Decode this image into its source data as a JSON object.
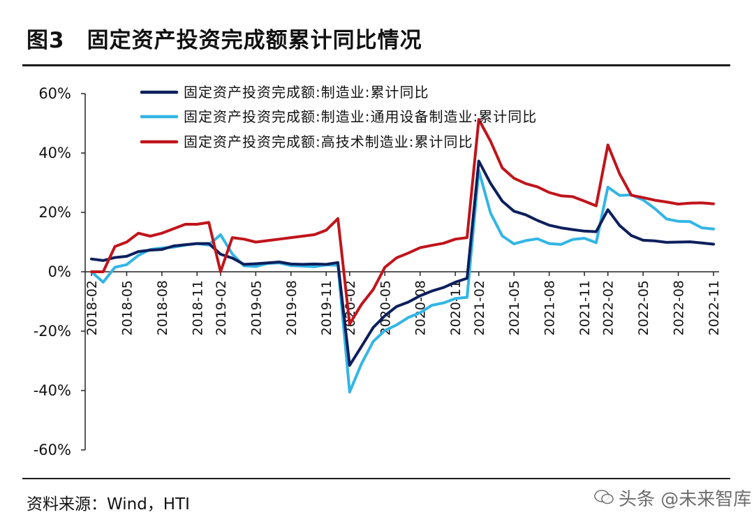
{
  "header": {
    "title": "图3　固定资产投资完成额累计同比情况"
  },
  "footer": {
    "source": "资料来源：Wind，HTI",
    "watermark": "头条 @未来智库"
  },
  "chart_data": {
    "type": "line",
    "title": "",
    "xlabel": "",
    "ylabel": "",
    "ylim": [
      -60,
      60
    ],
    "y_ticks": [
      -60,
      -40,
      -20,
      0,
      20,
      40,
      60
    ],
    "y_tick_labels": [
      "-60%",
      "-40%",
      "-20%",
      "0%",
      "20%",
      "40%",
      "60%"
    ],
    "y_unit": "%",
    "grid": false,
    "legend_position": "top-left",
    "x_tick_labels": [
      "2018-02",
      "2018-05",
      "2018-08",
      "2018-11",
      "2019-02",
      "2019-05",
      "2019-08",
      "2019-11",
      "2020-02",
      "2020-05",
      "2020-08",
      "2020-11",
      "2021-02",
      "2021-05",
      "2021-08",
      "2021-11",
      "2022-02",
      "2022-05",
      "2022-08",
      "2022-11"
    ],
    "x": [
      "2018-02",
      "2018-03",
      "2018-04",
      "2018-05",
      "2018-06",
      "2018-07",
      "2018-08",
      "2018-09",
      "2018-10",
      "2018-11",
      "2018-12",
      "2019-02",
      "2019-03",
      "2019-04",
      "2019-05",
      "2019-06",
      "2019-07",
      "2019-08",
      "2019-09",
      "2019-10",
      "2019-11",
      "2019-12",
      "2020-02",
      "2020-03",
      "2020-04",
      "2020-05",
      "2020-06",
      "2020-07",
      "2020-08",
      "2020-09",
      "2020-10",
      "2020-11",
      "2020-12",
      "2021-02",
      "2021-03",
      "2021-04",
      "2021-05",
      "2021-06",
      "2021-07",
      "2021-08",
      "2021-09",
      "2021-10",
      "2021-11",
      "2021-12",
      "2022-02",
      "2022-03",
      "2022-04",
      "2022-05",
      "2022-06",
      "2022-07",
      "2022-08",
      "2022-09",
      "2022-10",
      "2022-11"
    ],
    "series": [
      {
        "name": "固定资产投资完成额:制造业:累计同比",
        "color": "#0d1f5c",
        "values": [
          4.3,
          3.8,
          4.8,
          5.2,
          6.8,
          7.3,
          7.5,
          8.7,
          9.1,
          9.5,
          9.5,
          5.9,
          4.6,
          2.5,
          2.7,
          3.0,
          3.3,
          2.6,
          2.5,
          2.6,
          2.5,
          3.1,
          -31.5,
          -25.2,
          -18.8,
          -14.8,
          -11.7,
          -10.2,
          -8.1,
          -6.5,
          -5.3,
          -3.5,
          -2.2,
          37.3,
          29.8,
          23.8,
          20.4,
          19.2,
          17.3,
          15.7,
          14.8,
          14.2,
          13.7,
          13.5,
          20.9,
          15.6,
          12.2,
          10.6,
          10.4,
          9.9,
          10.0,
          10.1,
          9.7,
          9.3
        ]
      },
      {
        "name": "固定资产投资完成额:制造业:通用设备制造业:累计同比",
        "color": "#33b5e5",
        "values": [
          0,
          -3.5,
          1.5,
          2.4,
          5.5,
          7.5,
          8.0,
          8.3,
          9.0,
          9.5,
          9.0,
          12.5,
          6.0,
          2.0,
          1.8,
          2.8,
          3.0,
          2.1,
          1.9,
          1.7,
          2.3,
          2.2,
          -40.5,
          -31.0,
          -23.5,
          -19.8,
          -17.9,
          -15.4,
          -13.8,
          -11.3,
          -10.5,
          -9.0,
          -8.6,
          34.1,
          19.8,
          12.1,
          9.4,
          10.5,
          11.1,
          9.5,
          9.2,
          10.9,
          11.3,
          9.8,
          28.5,
          25.7,
          25.9,
          24.2,
          21.3,
          17.8,
          17.0,
          16.9,
          14.8,
          14.4
        ]
      },
      {
        "name": "固定资产投资完成额:高技术制造业:累计同比",
        "color": "#c0141b",
        "values": [
          0,
          0,
          8.5,
          10.0,
          13.0,
          12.0,
          13.0,
          14.5,
          16.0,
          16.0,
          16.6,
          0,
          11.5,
          11.0,
          10.0,
          10.5,
          11.0,
          11.5,
          12.0,
          12.5,
          14.0,
          17.9,
          -17.6,
          -11.0,
          -6.0,
          1.5,
          4.7,
          6.3,
          8.1,
          8.9,
          9.6,
          11.0,
          11.5,
          51.3,
          44.0,
          35.0,
          31.5,
          29.7,
          28.6,
          26.7,
          25.6,
          25.3,
          23.8,
          22.2,
          42.7,
          33.0,
          25.8,
          25.0,
          24.1,
          23.5,
          22.8,
          23.1,
          23.2,
          22.9
        ]
      }
    ]
  }
}
